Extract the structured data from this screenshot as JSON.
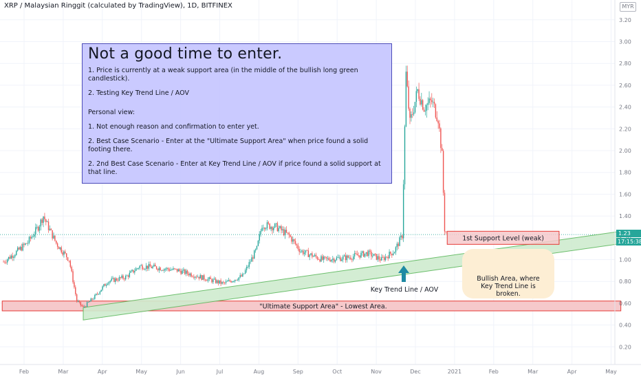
{
  "header": {
    "title": "XRP / Malaysian Ringgit (calculated by TradingView), 1D, BITFINEX",
    "currency_badge": "MYR"
  },
  "price_badge": {
    "value": "1.23",
    "countdown": "17:15:38"
  },
  "note": {
    "heading": "Not a good time to enter.",
    "lines": [
      "1. Price is currently at a weak support area (in the middle of the bullish long green candlestick).",
      "2. Testing Key Trend Line / AOV",
      "Personal view:",
      "1. Not enough reason and confirmation to enter yet.",
      "2. Best Case Scenario - Enter at the \"Ultimate Support Area\" when price found a solid footing there.",
      "2. 2nd Best Case Scenario - Enter at Key Trend Line / AOV if price found a solid support at that line."
    ]
  },
  "annotations": {
    "support_1": "1st Support Level (weak)",
    "ultimate": "\"Ultimate Support Area\" - Lowest Area.",
    "key_trend": "Key Trend Line / AOV",
    "bullish_area": "Bullish Area, where Key Trend Line is broken."
  },
  "colors": {
    "up": "#26a69a",
    "down": "#ef5350",
    "support_fill": "#f6c9cb",
    "support_border": "#e53935",
    "channel_fill": "#cfeccf",
    "channel_border": "#5cb85c",
    "arrow": "#1f8aa3",
    "bullish_fill": "#fdeed4",
    "note_fill": "#c6c6ff",
    "note_border": "#4b4bb8",
    "grid": "#f0f3fa",
    "axis_text": "#787b86"
  },
  "chart_data": {
    "type": "candlestick",
    "title": "XRP / Malaysian Ringgit (calculated by TradingView), 1D, BITFINEX",
    "x_labels": [
      "Feb",
      "Mar",
      "Apr",
      "May",
      "Jun",
      "Jul",
      "Aug",
      "Sep",
      "Oct",
      "Nov",
      "Dec",
      "2021",
      "Feb",
      "Mar",
      "Apr",
      "May"
    ],
    "y_ticks": [
      0.2,
      0.4,
      0.6,
      0.8,
      1.0,
      1.2,
      1.4,
      1.6,
      1.8,
      2.0,
      2.2,
      2.4,
      2.6,
      2.8,
      3.0,
      3.2
    ],
    "y_range": [
      0.08,
      3.28
    ],
    "grid": true,
    "current_price": 1.23,
    "price_path": [
      {
        "date": "2020-01-16",
        "price": 0.98
      },
      {
        "date": "2020-01-25",
        "price": 1.06
      },
      {
        "date": "2020-02-04",
        "price": 1.16
      },
      {
        "date": "2020-02-12",
        "price": 1.3
      },
      {
        "date": "2020-02-16",
        "price": 1.4
      },
      {
        "date": "2020-02-19",
        "price": 1.32
      },
      {
        "date": "2020-02-26",
        "price": 1.15
      },
      {
        "date": "2020-03-07",
        "price": 1.0
      },
      {
        "date": "2020-03-13",
        "price": 0.62
      },
      {
        "date": "2020-03-18",
        "price": 0.56
      },
      {
        "date": "2020-03-27",
        "price": 0.66
      },
      {
        "date": "2020-04-06",
        "price": 0.8
      },
      {
        "date": "2020-04-20",
        "price": 0.84
      },
      {
        "date": "2020-05-01",
        "price": 0.94
      },
      {
        "date": "2020-05-12",
        "price": 0.93
      },
      {
        "date": "2020-05-31",
        "price": 0.9
      },
      {
        "date": "2020-06-20",
        "price": 0.83
      },
      {
        "date": "2020-07-05",
        "price": 0.78
      },
      {
        "date": "2020-07-20",
        "price": 0.85
      },
      {
        "date": "2020-07-31",
        "price": 1.1
      },
      {
        "date": "2020-08-04",
        "price": 1.32
      },
      {
        "date": "2020-08-15",
        "price": 1.3
      },
      {
        "date": "2020-08-25",
        "price": 1.22
      },
      {
        "date": "2020-09-03",
        "price": 1.08
      },
      {
        "date": "2020-09-20",
        "price": 1.0
      },
      {
        "date": "2020-10-10",
        "price": 1.02
      },
      {
        "date": "2020-10-25",
        "price": 1.06
      },
      {
        "date": "2020-11-05",
        "price": 1.0
      },
      {
        "date": "2020-11-15",
        "price": 1.08
      },
      {
        "date": "2020-11-21",
        "price": 1.22
      },
      {
        "date": "2020-11-24",
        "price": 2.7
      },
      {
        "date": "2020-11-27",
        "price": 2.25
      },
      {
        "date": "2020-12-03",
        "price": 2.55
      },
      {
        "date": "2020-12-08",
        "price": 2.4
      },
      {
        "date": "2020-12-14",
        "price": 2.45
      },
      {
        "date": "2020-12-19",
        "price": 2.3
      },
      {
        "date": "2020-12-22",
        "price": 1.95
      },
      {
        "date": "2020-12-24",
        "price": 1.28
      },
      {
        "date": "2020-12-26",
        "price": 1.23
      }
    ],
    "zones": [
      {
        "label": "1st Support Level (weak)",
        "from": "2020-12-26",
        "to": "2021-03-23",
        "y_low": 1.14,
        "y_high": 1.26
      },
      {
        "label": "\"Ultimate Support Area\" - Lowest Area.",
        "from": "2020-01-15",
        "to": "2021-05-10",
        "y_low": 0.53,
        "y_high": 0.62
      }
    ],
    "trend_line": {
      "label": "Key Trend Line / AOV",
      "start": {
        "date": "2020-03-18",
        "price": 0.56
      },
      "end": {
        "date": "2021-05-10",
        "price": 1.26
      }
    },
    "bullish_area_label": "Bullish Area, where Key Trend Line is broken."
  }
}
